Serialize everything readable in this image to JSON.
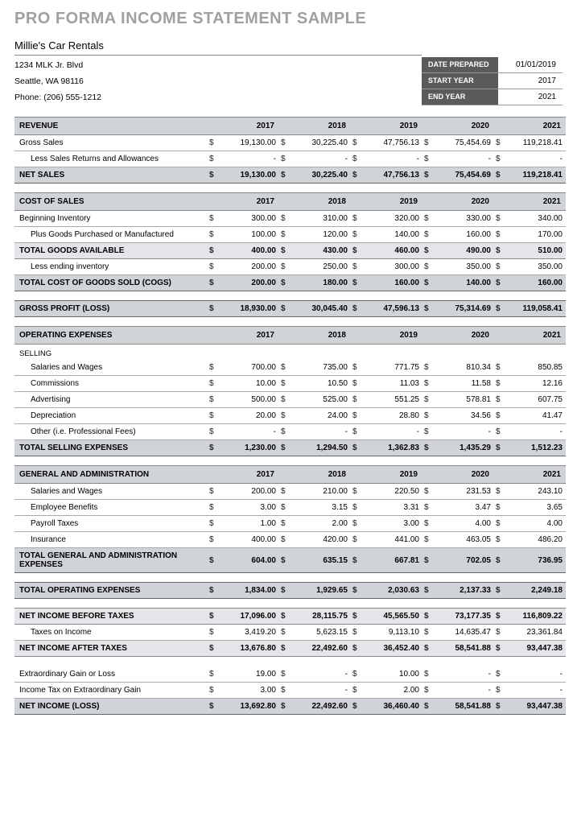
{
  "title": "PRO FORMA INCOME STATEMENT SAMPLE",
  "company": {
    "name": "Millie's Car Rentals",
    "addr1": "1234 MLK Jr. Blvd",
    "addr2": "Seattle, WA 98116",
    "phone": "Phone: (206) 555-1212"
  },
  "meta": {
    "date_prepared_label": "DATE PREPARED",
    "date_prepared": "01/01/2019",
    "start_year_label": "START YEAR",
    "start_year": "2017",
    "end_year_label": "END YEAR",
    "end_year": "2021"
  },
  "years": [
    "2017",
    "2018",
    "2019",
    "2020",
    "2021"
  ],
  "sections": {
    "revenue": "REVENUE",
    "cost_of_sales": "COST OF SALES",
    "operating_expenses": "OPERATING EXPENSES",
    "general_admin": "GENERAL AND ADMINISTRATION"
  },
  "rows": {
    "gross_sales": {
      "label": "Gross Sales",
      "v": [
        "19,130.00",
        "30,225.40",
        "47,756.13",
        "75,454.69",
        "119,218.41"
      ]
    },
    "less_returns": {
      "label": "Less Sales Returns and Allowances",
      "v": [
        "-",
        "-",
        "-",
        "-",
        "-"
      ]
    },
    "net_sales": {
      "label": "NET SALES",
      "v": [
        "19,130.00",
        "30,225.40",
        "47,756.13",
        "75,454.69",
        "119,218.41"
      ]
    },
    "beg_inv": {
      "label": "Beginning Inventory",
      "v": [
        "300.00",
        "310.00",
        "320.00",
        "330.00",
        "340.00"
      ]
    },
    "plus_goods": {
      "label": "Plus Goods Purchased or Manufactured",
      "v": [
        "100.00",
        "120.00",
        "140.00",
        "160.00",
        "170.00"
      ]
    },
    "total_goods": {
      "label": "TOTAL GOODS AVAILABLE",
      "v": [
        "400.00",
        "430.00",
        "460.00",
        "490.00",
        "510.00"
      ]
    },
    "less_end_inv": {
      "label": "Less ending inventory",
      "v": [
        "200.00",
        "250.00",
        "300.00",
        "350.00",
        "350.00"
      ]
    },
    "cogs": {
      "label": "TOTAL COST OF GOODS SOLD (COGS)",
      "v": [
        "200.00",
        "180.00",
        "160.00",
        "140.00",
        "160.00"
      ]
    },
    "gross_profit": {
      "label": "GROSS PROFIT (LOSS)",
      "v": [
        "18,930.00",
        "30,045.40",
        "47,596.13",
        "75,314.69",
        "119,058.41"
      ]
    },
    "selling_sub": {
      "label": "SELLING"
    },
    "sal_wages": {
      "label": "Salaries and Wages",
      "v": [
        "700.00",
        "735.00",
        "771.75",
        "810.34",
        "850.85"
      ]
    },
    "commissions": {
      "label": "Commissions",
      "v": [
        "10.00",
        "10.50",
        "11.03",
        "11.58",
        "12.16"
      ]
    },
    "advertising": {
      "label": "Advertising",
      "v": [
        "500.00",
        "525.00",
        "551.25",
        "578.81",
        "607.75"
      ]
    },
    "depreciation": {
      "label": "Depreciation",
      "v": [
        "20.00",
        "24.00",
        "28.80",
        "34.56",
        "41.47"
      ]
    },
    "other": {
      "label": "Other  (i.e. Professional Fees)",
      "v": [
        "-",
        "-",
        "-",
        "-",
        "-"
      ]
    },
    "total_selling": {
      "label": "TOTAL SELLING EXPENSES",
      "v": [
        "1,230.00",
        "1,294.50",
        "1,362.83",
        "1,435.29",
        "1,512.23"
      ]
    },
    "ga_sal": {
      "label": "Salaries and Wages",
      "v": [
        "200.00",
        "210.00",
        "220.50",
        "231.53",
        "243.10"
      ]
    },
    "ga_benefits": {
      "label": "Employee Benefits",
      "v": [
        "3.00",
        "3.15",
        "3.31",
        "3.47",
        "3.65"
      ]
    },
    "ga_payroll": {
      "label": "Payroll Taxes",
      "v": [
        "1.00",
        "2.00",
        "3.00",
        "4.00",
        "4.00"
      ]
    },
    "ga_insurance": {
      "label": "Insurance",
      "v": [
        "400.00",
        "420.00",
        "441.00",
        "463.05",
        "486.20"
      ]
    },
    "total_ga": {
      "label": "TOTAL GENERAL AND ADMINISTRATION EXPENSES",
      "v": [
        "604.00",
        "635.15",
        "667.81",
        "702.05",
        "736.95"
      ]
    },
    "total_opex": {
      "label": "TOTAL OPERATING EXPENSES",
      "v": [
        "1,834.00",
        "1,929.65",
        "2,030.63",
        "2,137.33",
        "2,249.18"
      ]
    },
    "ni_before_tax": {
      "label": "NET INCOME BEFORE TAXES",
      "v": [
        "17,096.00",
        "28,115.75",
        "45,565.50",
        "73,177.35",
        "116,809.22"
      ]
    },
    "taxes": {
      "label": "Taxes on Income",
      "v": [
        "3,419.20",
        "5,623.15",
        "9,113.10",
        "14,635.47",
        "23,361.84"
      ]
    },
    "ni_after_tax": {
      "label": "NET INCOME AFTER TAXES",
      "v": [
        "13,676.80",
        "22,492.60",
        "36,452.40",
        "58,541.88",
        "93,447.38"
      ]
    },
    "ext_gain": {
      "label": "Extraordinary Gain or Loss",
      "v": [
        "19.00",
        "-",
        "10.00",
        "-",
        "-"
      ]
    },
    "ext_tax": {
      "label": "Income Tax on Extraordinary Gain",
      "v": [
        "3.00",
        "-",
        "2.00",
        "-",
        "-"
      ]
    },
    "ni_loss": {
      "label": "NET INCOME (LOSS)",
      "v": [
        "13,692.80",
        "22,492.60",
        "36,460.40",
        "58,541.88",
        "93,447.38"
      ]
    }
  },
  "currency": "$",
  "colors": {
    "title": "#a0a0a0",
    "header_bg": "#d0d3d8",
    "total_bg": "#e3e5e8",
    "meta_bg": "#5a5a5a"
  }
}
